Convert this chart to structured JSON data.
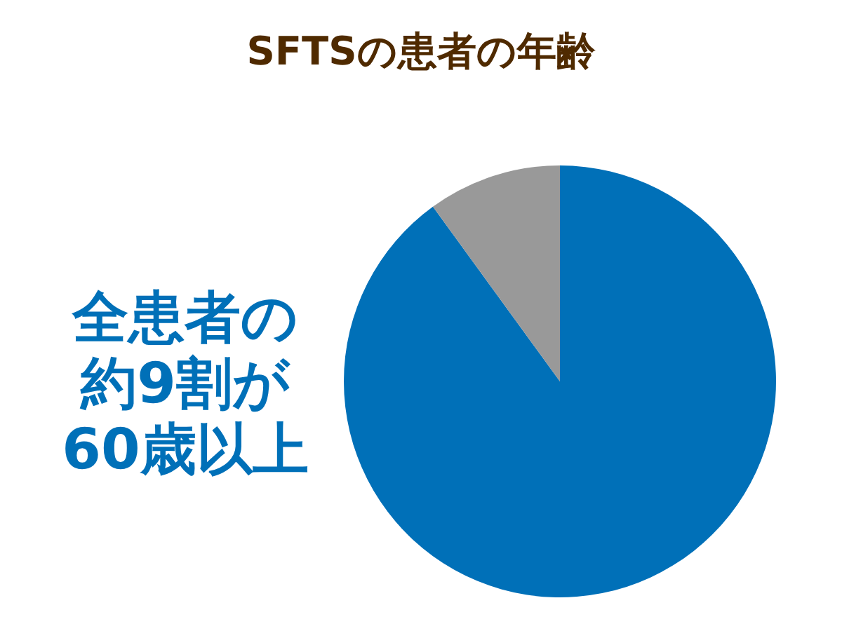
{
  "chart_data": {
    "type": "pie",
    "title": "SFTSの患者の年齢",
    "categories": [
      null,
      null
    ],
    "values": [
      90,
      10
    ],
    "colors": [
      "#0070b8",
      "#999999"
    ],
    "annotations": [
      "全患者の",
      "約9割が",
      "60歳以上"
    ]
  }
}
